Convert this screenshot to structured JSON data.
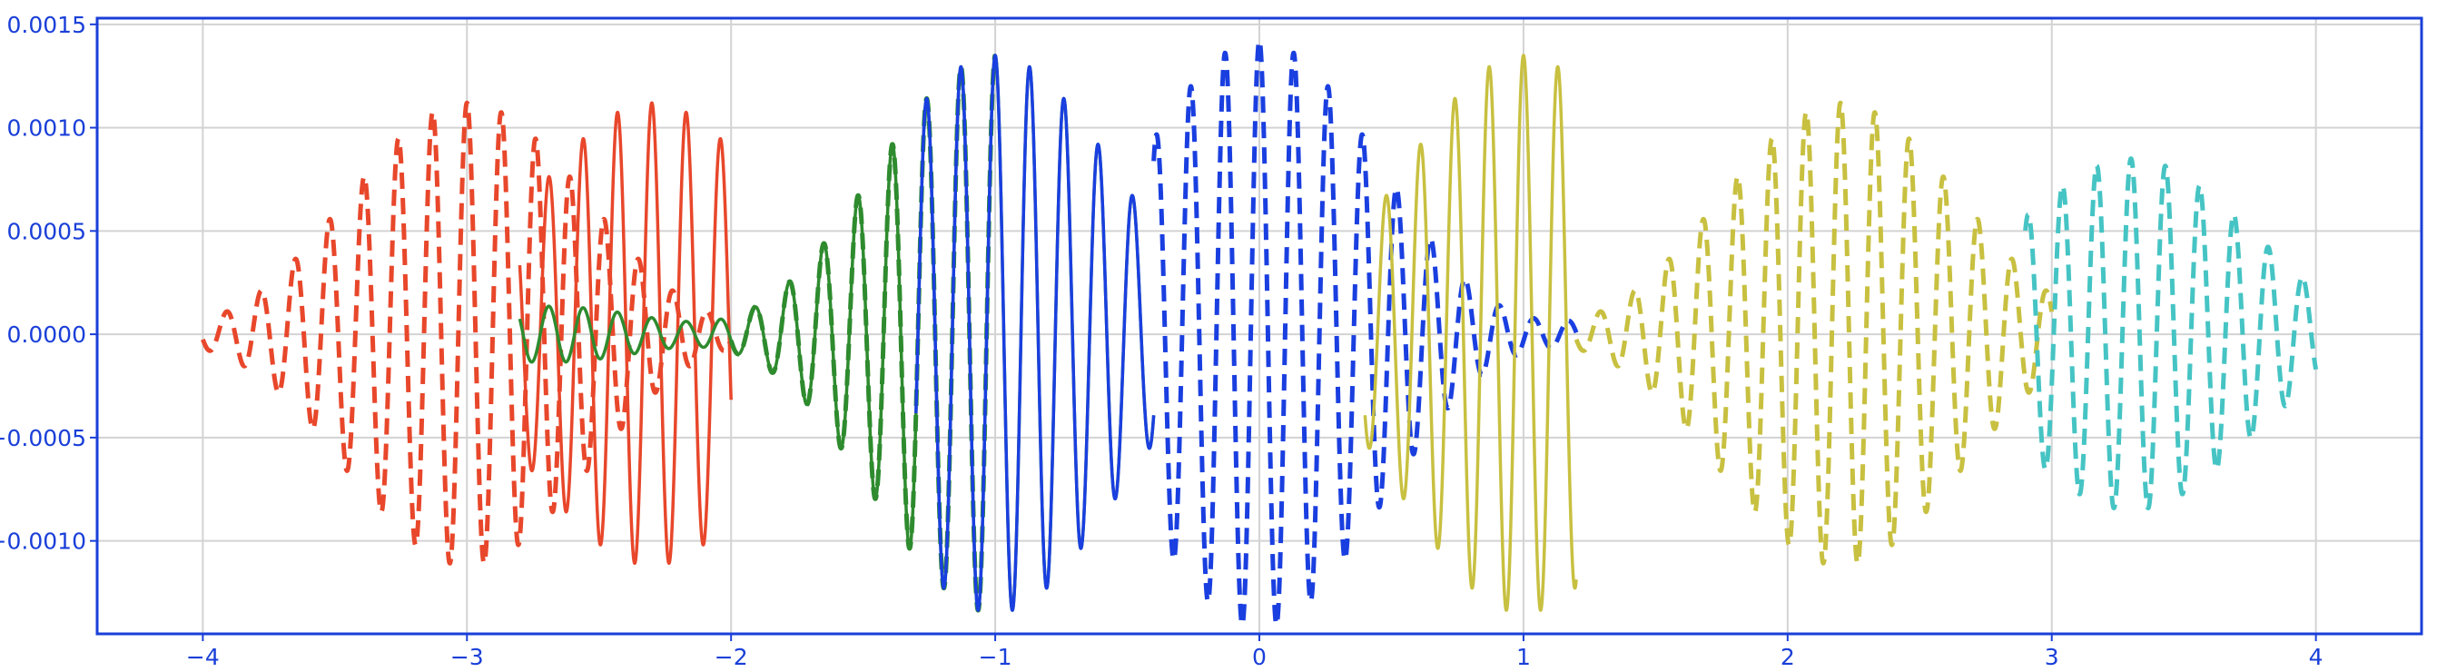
{
  "chart_data": {
    "type": "line",
    "title": "",
    "xlabel": "",
    "ylabel": "",
    "xlim": [
      -4.4,
      4.4
    ],
    "ylim": [
      -0.00145,
      0.00153
    ],
    "grid": true,
    "x_ticks": [
      {
        "value": -4,
        "label": "−4"
      },
      {
        "value": -3,
        "label": "−3"
      },
      {
        "value": -2,
        "label": "−2"
      },
      {
        "value": -1,
        "label": "−1"
      },
      {
        "value": 0,
        "label": "0"
      },
      {
        "value": 1,
        "label": "1"
      },
      {
        "value": 2,
        "label": "2"
      },
      {
        "value": 3,
        "label": "3"
      },
      {
        "value": 4,
        "label": "4"
      }
    ],
    "y_ticks": [
      {
        "value": 0.0015,
        "label": "0.0015"
      },
      {
        "value": 0.001,
        "label": "0.0010"
      },
      {
        "value": 0.0005,
        "label": "0.0005"
      },
      {
        "value": 0.0,
        "label": "0.0000"
      },
      {
        "value": -0.0005,
        "label": "−0.0005"
      },
      {
        "value": -0.001,
        "label": "−0.0010"
      }
    ],
    "series": [
      {
        "style": "dashed",
        "color": "#e8472b",
        "x_range": [
          -4.0,
          -2.0
        ],
        "center": -3.0,
        "amplitude": 0.00112,
        "carrier_period": 0.13
      },
      {
        "style": "solid",
        "color": "#e8472b",
        "x_range": [
          -2.8,
          -2.0
        ],
        "center": -2.3,
        "amplitude": 0.00112,
        "carrier_period": 0.13
      },
      {
        "style": "dashed",
        "color": "#2e8b2e",
        "x_range": [
          -2.0,
          -1.0
        ],
        "center": -1.0,
        "amplitude": 0.00135,
        "carrier_period": 0.13
      },
      {
        "style": "solid",
        "color": "#2e8b2e",
        "x_range": [
          -2.8,
          -0.4
        ],
        "center": -1.0,
        "amplitude": 0.00135,
        "carrier_period": 0.13
      },
      {
        "style": "dashed",
        "color": "#1a3fe0",
        "x_range": [
          -0.4,
          1.2
        ],
        "center": 0.0,
        "amplitude": 0.00142,
        "carrier_period": 0.13
      },
      {
        "style": "solid",
        "color": "#1a3fe0",
        "x_range": [
          -1.3,
          -0.4
        ],
        "center": -1.0,
        "amplitude": 0.00135,
        "carrier_period": 0.13
      },
      {
        "style": "dashed",
        "color": "#c8c040",
        "x_range": [
          1.2,
          3.0
        ],
        "center": 2.2,
        "amplitude": 0.00112,
        "carrier_period": 0.13
      },
      {
        "style": "solid",
        "color": "#c8c040",
        "x_range": [
          0.4,
          1.2
        ],
        "center": 1.0,
        "amplitude": 0.00135,
        "carrier_period": 0.13
      },
      {
        "style": "dashed",
        "color": "#46c4c4",
        "x_range": [
          2.9,
          4.0
        ],
        "center": 3.3,
        "amplitude": 0.00085,
        "carrier_period": 0.13
      }
    ]
  }
}
